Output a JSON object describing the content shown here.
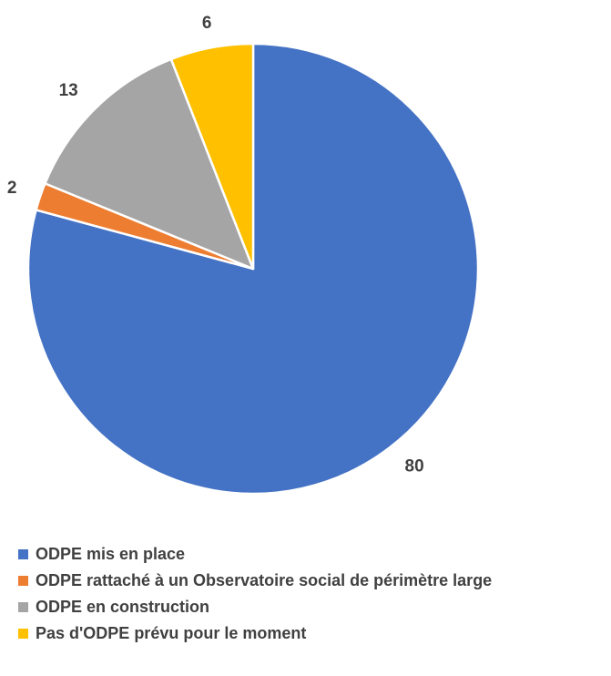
{
  "chart_data": {
    "type": "pie",
    "categories": [
      "ODPE mis en place",
      "ODPE rattaché à un Observatoire social de périmètre large",
      "ODPE en construction",
      "Pas d'ODPE prévu pour le moment"
    ],
    "values": [
      80,
      2,
      13,
      6
    ],
    "data_labels": [
      "80",
      "2",
      "13",
      "6"
    ],
    "colors": [
      "#4472C4",
      "#ED7D31",
      "#A5A5A5",
      "#FFC000"
    ],
    "start_angle": "12 o'clock",
    "direction": "clockwise",
    "legend_position": "bottom"
  }
}
